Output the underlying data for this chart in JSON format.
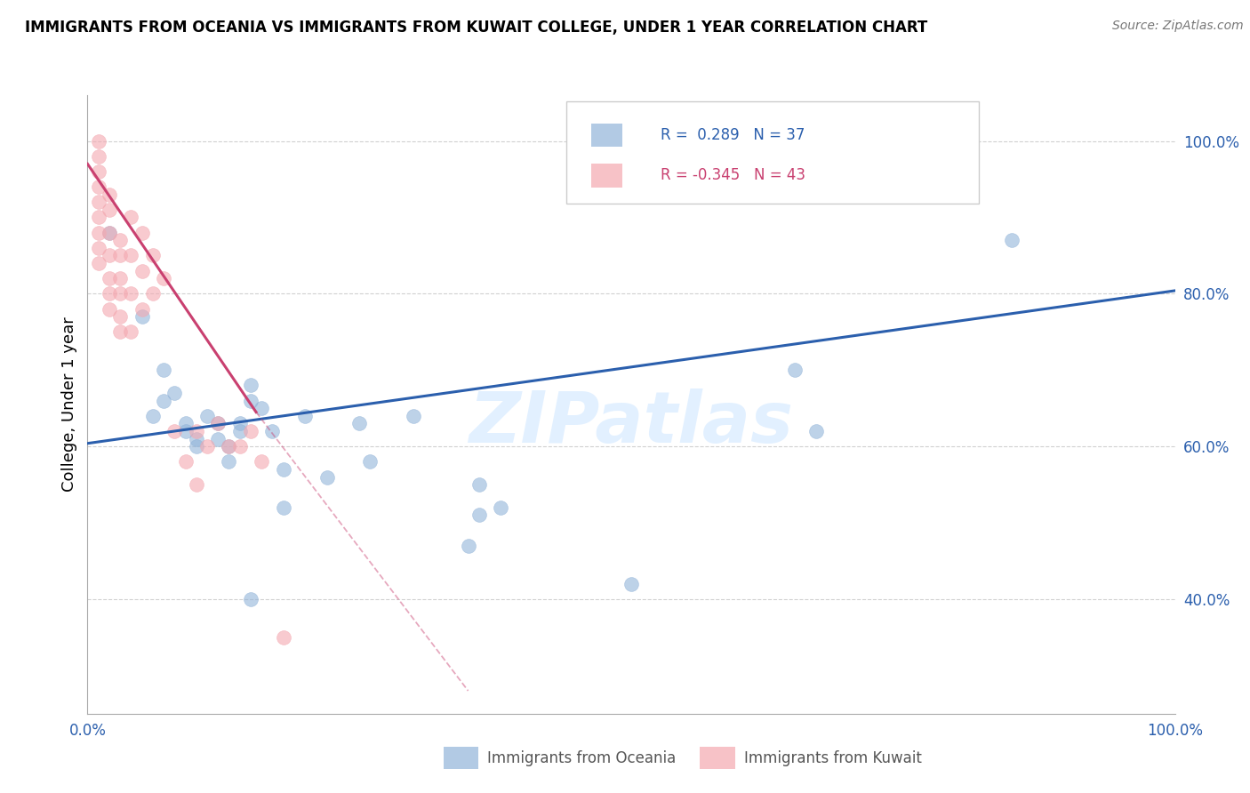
{
  "title": "IMMIGRANTS FROM OCEANIA VS IMMIGRANTS FROM KUWAIT COLLEGE, UNDER 1 YEAR CORRELATION CHART",
  "source": "Source: ZipAtlas.com",
  "ylabel": "College, Under 1 year",
  "legend_blue_r": "R =  0.289",
  "legend_blue_n": "N = 37",
  "legend_pink_r": "R = -0.345",
  "legend_pink_n": "N = 43",
  "legend_label_blue": "Immigrants from Oceania",
  "legend_label_pink": "Immigrants from Kuwait",
  "watermark": "ZIPatlas",
  "blue_color": "#92b4d9",
  "pink_color": "#f4a8b0",
  "blue_line_color": "#2b5fad",
  "pink_line_color": "#c94070",
  "text_blue": "#2b5fad",
  "text_dark": "#333333",
  "grid_color": "#cccccc",
  "blue_scatter": [
    [
      0.02,
      0.88
    ],
    [
      0.05,
      0.77
    ],
    [
      0.06,
      0.64
    ],
    [
      0.07,
      0.7
    ],
    [
      0.07,
      0.66
    ],
    [
      0.08,
      0.67
    ],
    [
      0.09,
      0.63
    ],
    [
      0.09,
      0.62
    ],
    [
      0.1,
      0.61
    ],
    [
      0.1,
      0.6
    ],
    [
      0.11,
      0.64
    ],
    [
      0.12,
      0.63
    ],
    [
      0.12,
      0.61
    ],
    [
      0.13,
      0.6
    ],
    [
      0.13,
      0.58
    ],
    [
      0.14,
      0.63
    ],
    [
      0.14,
      0.62
    ],
    [
      0.15,
      0.68
    ],
    [
      0.15,
      0.66
    ],
    [
      0.16,
      0.65
    ],
    [
      0.17,
      0.62
    ],
    [
      0.18,
      0.57
    ],
    [
      0.18,
      0.52
    ],
    [
      0.2,
      0.64
    ],
    [
      0.22,
      0.56
    ],
    [
      0.25,
      0.63
    ],
    [
      0.26,
      0.58
    ],
    [
      0.3,
      0.64
    ],
    [
      0.35,
      0.47
    ],
    [
      0.36,
      0.55
    ],
    [
      0.36,
      0.51
    ],
    [
      0.38,
      0.52
    ],
    [
      0.5,
      0.42
    ],
    [
      0.65,
      0.7
    ],
    [
      0.67,
      0.62
    ],
    [
      0.85,
      0.87
    ],
    [
      0.15,
      0.4
    ]
  ],
  "pink_scatter": [
    [
      0.01,
      1.0
    ],
    [
      0.01,
      0.98
    ],
    [
      0.01,
      0.96
    ],
    [
      0.01,
      0.94
    ],
    [
      0.01,
      0.92
    ],
    [
      0.01,
      0.9
    ],
    [
      0.01,
      0.88
    ],
    [
      0.01,
      0.86
    ],
    [
      0.01,
      0.84
    ],
    [
      0.02,
      0.93
    ],
    [
      0.02,
      0.91
    ],
    [
      0.02,
      0.88
    ],
    [
      0.02,
      0.85
    ],
    [
      0.02,
      0.82
    ],
    [
      0.02,
      0.8
    ],
    [
      0.02,
      0.78
    ],
    [
      0.03,
      0.87
    ],
    [
      0.03,
      0.85
    ],
    [
      0.03,
      0.82
    ],
    [
      0.03,
      0.8
    ],
    [
      0.03,
      0.77
    ],
    [
      0.03,
      0.75
    ],
    [
      0.04,
      0.9
    ],
    [
      0.04,
      0.85
    ],
    [
      0.04,
      0.8
    ],
    [
      0.04,
      0.75
    ],
    [
      0.05,
      0.88
    ],
    [
      0.05,
      0.83
    ],
    [
      0.05,
      0.78
    ],
    [
      0.06,
      0.85
    ],
    [
      0.06,
      0.8
    ],
    [
      0.07,
      0.82
    ],
    [
      0.08,
      0.62
    ],
    [
      0.1,
      0.62
    ],
    [
      0.11,
      0.6
    ],
    [
      0.12,
      0.63
    ],
    [
      0.13,
      0.6
    ],
    [
      0.14,
      0.6
    ],
    [
      0.15,
      0.62
    ],
    [
      0.16,
      0.58
    ],
    [
      0.18,
      0.35
    ],
    [
      0.1,
      0.55
    ],
    [
      0.09,
      0.58
    ]
  ],
  "blue_line": [
    [
      0.0,
      0.604
    ],
    [
      1.0,
      0.804
    ]
  ],
  "pink_line_solid": [
    [
      0.0,
      0.97
    ],
    [
      0.155,
      0.645
    ]
  ],
  "pink_line_dash": [
    [
      0.155,
      0.645
    ],
    [
      0.35,
      0.28
    ]
  ],
  "xlim": [
    0.0,
    1.0
  ],
  "ylim": [
    0.25,
    1.06
  ],
  "yticks": [
    0.4,
    0.6,
    0.8,
    1.0
  ],
  "ytick_labels": [
    "40.0%",
    "60.0%",
    "80.0%",
    "100.0%"
  ],
  "xtick_positions": [
    0.0,
    0.25,
    0.5,
    0.75,
    1.0
  ],
  "xtick_labels": [
    "0.0%",
    "",
    "",
    "",
    "100.0%"
  ]
}
